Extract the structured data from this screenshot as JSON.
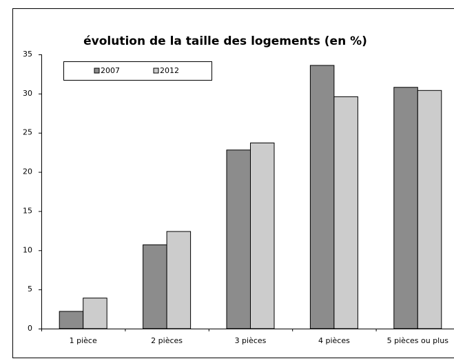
{
  "chart_data": {
    "type": "bar",
    "title": "évolution de la taille des logements (en %)",
    "categories": [
      "1 pièce",
      "2 pièces",
      "3 pièces",
      "4 pièces",
      "5 pièces ou plus"
    ],
    "series": [
      {
        "name": "2007",
        "color": "#8c8c8c",
        "values": [
          2.2,
          10.7,
          22.8,
          33.6,
          30.8
        ]
      },
      {
        "name": "2012",
        "color": "#cccccc",
        "values": [
          3.9,
          12.4,
          23.7,
          29.6,
          30.4
        ]
      }
    ],
    "ylim": [
      0,
      35
    ],
    "yticks": [
      0,
      5,
      10,
      15,
      20,
      25,
      30,
      35
    ],
    "grid": false,
    "legend": "top-left"
  }
}
